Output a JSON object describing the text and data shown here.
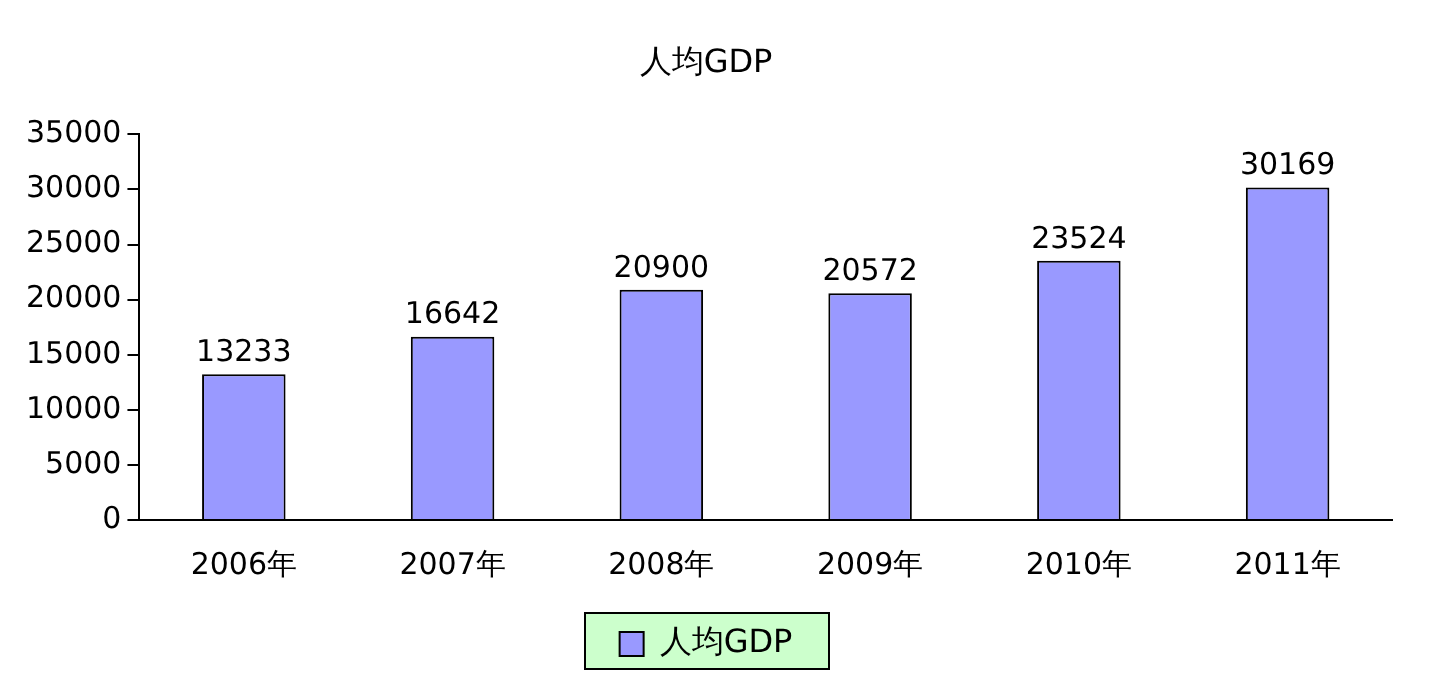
{
  "chart_data": {
    "type": "bar",
    "title": "人均GDP",
    "categories": [
      "2006年",
      "2007年",
      "2008年",
      "2009年",
      "2010年",
      "2011年"
    ],
    "series": [
      {
        "name": "人均GDP",
        "color": "#9999ff",
        "values": [
          13233,
          16642,
          20900,
          20572,
          23524,
          30169
        ]
      }
    ],
    "ylim": [
      0,
      35000
    ],
    "yticks": [
      0,
      5000,
      10000,
      15000,
      20000,
      25000,
      30000,
      35000
    ],
    "grid": false,
    "legend": "bottom",
    "data_labels": true
  }
}
